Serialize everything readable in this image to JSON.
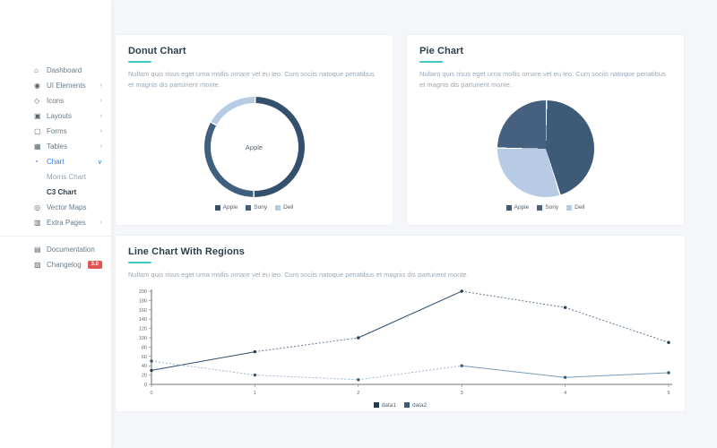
{
  "sidebar": {
    "items": [
      {
        "label": "Dashboard",
        "glyph": "⌂",
        "arrow": ""
      },
      {
        "label": "UI Elements",
        "glyph": "◉",
        "arrow": "›"
      },
      {
        "label": "Icons",
        "glyph": "◇",
        "arrow": "›"
      },
      {
        "label": "Layouts",
        "glyph": "▣",
        "arrow": "›"
      },
      {
        "label": "Forms",
        "glyph": "▢",
        "arrow": "›"
      },
      {
        "label": "Tables",
        "glyph": "▦",
        "arrow": "›"
      },
      {
        "label": "Chart",
        "glyph": "◔",
        "arrow": "∨"
      },
      {
        "label": "Vector Maps",
        "glyph": "◎",
        "arrow": ""
      },
      {
        "label": "Extra Pages",
        "glyph": "▥",
        "arrow": "›"
      }
    ],
    "submenu": [
      {
        "label": "Morris Chart"
      },
      {
        "label": "C3 Chart"
      }
    ],
    "footer_items": [
      {
        "label": "Documentation",
        "glyph": "▤"
      },
      {
        "label": "Changelog",
        "glyph": "▧",
        "badge": "3.0"
      }
    ]
  },
  "cards": {
    "donut": {
      "title": "Donut Chart",
      "description": "Nullam quis risus eget urna mollis ornare vel eu leo. Cum sociis natoque penatibus et magnis dis parturient monte.",
      "center_label": "Apple"
    },
    "pie": {
      "title": "Pie Chart",
      "description": "Nullam quis risus eget urna mollis ornare vel eu leo. Cum sociis natoque penatibus et magnis dis parturient monte."
    },
    "line": {
      "title": "Line Chart With Regions",
      "description": "Nullam quis risus eget urna mollis ornare vel eu leo. Cum sociis natoque penatibus et magnis dis parturient monte."
    }
  },
  "chart_data": [
    {
      "type": "donut",
      "title": "Donut Chart",
      "center_label": "Apple",
      "segments": [
        {
          "name": "Apple",
          "percent": 50,
          "color": "#33506d"
        },
        {
          "name": "Sony",
          "percent": 33,
          "color": "#41607f"
        },
        {
          "name": "Dell",
          "percent": 17,
          "color": "#b8cbe5"
        }
      ],
      "legend": [
        "Apple",
        "Sony",
        "Dell"
      ],
      "legend_position": "bottom"
    },
    {
      "type": "pie",
      "title": "Pie Chart",
      "segments": [
        {
          "name": "Apple",
          "percent": 45,
          "color": "#3d5a77"
        },
        {
          "name": "Dell",
          "percent": 30,
          "color": "#b8cbe5"
        },
        {
          "name": "Sony",
          "percent": 25,
          "color": "#45617f"
        }
      ],
      "legend": [
        "Apple",
        "Sony",
        "Dell"
      ],
      "legend_position": "bottom"
    },
    {
      "type": "line",
      "title": "Line Chart With Regions",
      "x": [
        0,
        1,
        2,
        3,
        4,
        5
      ],
      "series": [
        {
          "name": "data1",
          "values": [
            30,
            70,
            100,
            200,
            165,
            90
          ],
          "color": "#2e4d6e",
          "marker_color": "#223c55",
          "dashed_regions": [
            [
              1,
              2
            ],
            [
              3,
              5
            ]
          ]
        },
        {
          "name": "data2",
          "values": [
            50,
            20,
            10,
            40,
            15,
            25
          ],
          "color": "#7b9cbd",
          "marker_color": "#3c5a78",
          "dashed_regions": [
            [
              0,
              3
            ]
          ]
        }
      ],
      "ylim": [
        0,
        200
      ],
      "y_ticks": [
        0,
        20,
        40,
        60,
        80,
        100,
        120,
        140,
        160,
        180,
        200
      ],
      "x_ticks": [
        0,
        1,
        2,
        3,
        4,
        5
      ],
      "legend": [
        "data1",
        "data2"
      ],
      "legend_position": "bottom",
      "grid": false
    }
  ]
}
